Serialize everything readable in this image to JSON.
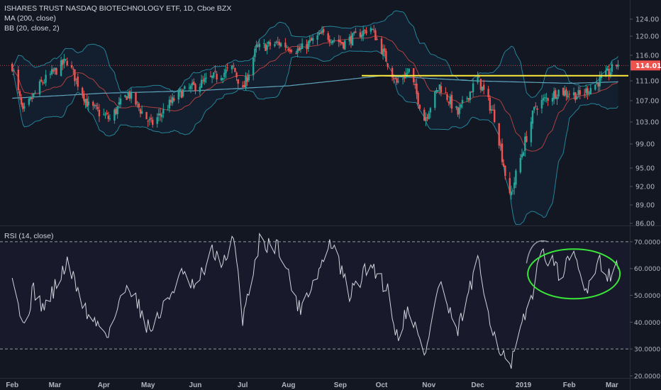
{
  "legend": {
    "title": "ISHARES TRUST NASDAQ BIOTECHNOLOGY ETF, 1D, Cboe BZX",
    "ma": "MA (200, close)",
    "bb": "BB (20, close, 2)",
    "rsi": "RSI (14, close)"
  },
  "colors": {
    "background": "#131722",
    "up": "#26a69a",
    "down": "#ef5350",
    "bb_band": "#2a9db5",
    "bb_basis": "#b0403e",
    "ma200": "#5fa4bd",
    "resistance_line": "#ffeb3b",
    "rsi_line": "#d1d4dc",
    "annotation_green": "#39e639",
    "price_tag": "#ef5350"
  },
  "chart_data": [
    {
      "type": "candlestick",
      "title": "ISHARES TRUST NASDAQ BIOTECHNOLOGY ETF, 1D, Cboe BZX",
      "ylim": [
        86.0,
        126.0
      ],
      "price_axis_ticks": [
        "124.00",
        "120.00",
        "116.00",
        "111.00",
        "107.00",
        "103.00",
        "99.00",
        "95.00",
        "92.00",
        "89.00",
        "86.00"
      ],
      "time_axis_labels": [
        "Feb",
        "Mar",
        "Apr",
        "May",
        "Jun",
        "Jul",
        "Aug",
        "Sep",
        "Oct",
        "Nov",
        "Dec",
        "2019",
        "Feb",
        "Mar"
      ],
      "last_price_label": "114.01",
      "close_path_keypoints": [
        {
          "t": "2018-02-01",
          "v": 114.0
        },
        {
          "t": "2018-02-08",
          "v": 104.5
        },
        {
          "t": "2018-02-20",
          "v": 110.5
        },
        {
          "t": "2018-03-09",
          "v": 115.0
        },
        {
          "t": "2018-03-23",
          "v": 106.0
        },
        {
          "t": "2018-04-06",
          "v": 103.5
        },
        {
          "t": "2018-04-18",
          "v": 108.5
        },
        {
          "t": "2018-05-03",
          "v": 102.5
        },
        {
          "t": "2018-05-22",
          "v": 108.5
        },
        {
          "t": "2018-06-12",
          "v": 111.5
        },
        {
          "t": "2018-06-26",
          "v": 113.5
        },
        {
          "t": "2018-07-02",
          "v": 109.0
        },
        {
          "t": "2018-07-11",
          "v": 117.5
        },
        {
          "t": "2018-07-26",
          "v": 118.5
        },
        {
          "t": "2018-08-08",
          "v": 117.0
        },
        {
          "t": "2018-08-23",
          "v": 120.5
        },
        {
          "t": "2018-09-06",
          "v": 118.5
        },
        {
          "t": "2018-09-24",
          "v": 122.0
        },
        {
          "t": "2018-10-11",
          "v": 110.5
        },
        {
          "t": "2018-10-19",
          "v": 113.0
        },
        {
          "t": "2018-10-29",
          "v": 103.5
        },
        {
          "t": "2018-11-08",
          "v": 110.0
        },
        {
          "t": "2018-11-20",
          "v": 104.5
        },
        {
          "t": "2018-12-03",
          "v": 111.5
        },
        {
          "t": "2018-12-14",
          "v": 104.0
        },
        {
          "t": "2018-12-24",
          "v": 90.0
        },
        {
          "t": "2019-01-10",
          "v": 106.0
        },
        {
          "t": "2019-01-25",
          "v": 109.0
        },
        {
          "t": "2019-02-08",
          "v": 108.0
        },
        {
          "t": "2019-02-25",
          "v": 112.0
        },
        {
          "t": "2019-03-05",
          "v": 114.5
        }
      ],
      "ma200_keypoints": [
        {
          "t": "2018-02-01",
          "v": 107.5
        },
        {
          "t": "2018-04-01",
          "v": 108.5
        },
        {
          "t": "2018-06-01",
          "v": 109.0
        },
        {
          "t": "2018-08-01",
          "v": 110.0
        },
        {
          "t": "2018-10-01",
          "v": 112.0
        },
        {
          "t": "2018-12-01",
          "v": 111.0
        },
        {
          "t": "2019-02-01",
          "v": 110.5
        },
        {
          "t": "2019-03-05",
          "v": 110.8
        }
      ],
      "resistance_level": 112.0
    },
    {
      "type": "line",
      "title": "RSI (14, close)",
      "ylim": [
        20,
        75
      ],
      "axis_ticks": [
        "70.0000",
        "60.0000",
        "50.0000",
        "40.0000",
        "30.0000",
        "20.0000"
      ],
      "levels": [
        70,
        30
      ],
      "keypoints": [
        {
          "t": "2018-02-01",
          "v": 60
        },
        {
          "t": "2018-02-08",
          "v": 38
        },
        {
          "t": "2018-02-15",
          "v": 52
        },
        {
          "t": "2018-02-22",
          "v": 45
        },
        {
          "t": "2018-03-09",
          "v": 62
        },
        {
          "t": "2018-03-23",
          "v": 42
        },
        {
          "t": "2018-04-05",
          "v": 36
        },
        {
          "t": "2018-04-18",
          "v": 55
        },
        {
          "t": "2018-05-02",
          "v": 37
        },
        {
          "t": "2018-05-11",
          "v": 45
        },
        {
          "t": "2018-05-22",
          "v": 58
        },
        {
          "t": "2018-06-01",
          "v": 52
        },
        {
          "t": "2018-06-12",
          "v": 66
        },
        {
          "t": "2018-06-21",
          "v": 62
        },
        {
          "t": "2018-06-26",
          "v": 71
        },
        {
          "t": "2018-07-02",
          "v": 42
        },
        {
          "t": "2018-07-13",
          "v": 70
        },
        {
          "t": "2018-07-26",
          "v": 68
        },
        {
          "t": "2018-08-08",
          "v": 45
        },
        {
          "t": "2018-08-20",
          "v": 58
        },
        {
          "t": "2018-08-29",
          "v": 70
        },
        {
          "t": "2018-09-10",
          "v": 50
        },
        {
          "t": "2018-09-24",
          "v": 62
        },
        {
          "t": "2018-10-05",
          "v": 52
        },
        {
          "t": "2018-10-11",
          "v": 35
        },
        {
          "t": "2018-10-19",
          "v": 46
        },
        {
          "t": "2018-10-29",
          "v": 27
        },
        {
          "t": "2018-11-08",
          "v": 55
        },
        {
          "t": "2018-11-19",
          "v": 35
        },
        {
          "t": "2018-12-03",
          "v": 62
        },
        {
          "t": "2018-12-14",
          "v": 35
        },
        {
          "t": "2018-12-24",
          "v": 22
        },
        {
          "t": "2019-01-07",
          "v": 50
        },
        {
          "t": "2019-01-15",
          "v": 67
        },
        {
          "t": "2019-01-25",
          "v": 58
        },
        {
          "t": "2019-02-05",
          "v": 64
        },
        {
          "t": "2019-02-11",
          "v": 51
        },
        {
          "t": "2019-02-20",
          "v": 64
        },
        {
          "t": "2019-02-26",
          "v": 58
        },
        {
          "t": "2019-03-05",
          "v": 60
        }
      ]
    }
  ]
}
